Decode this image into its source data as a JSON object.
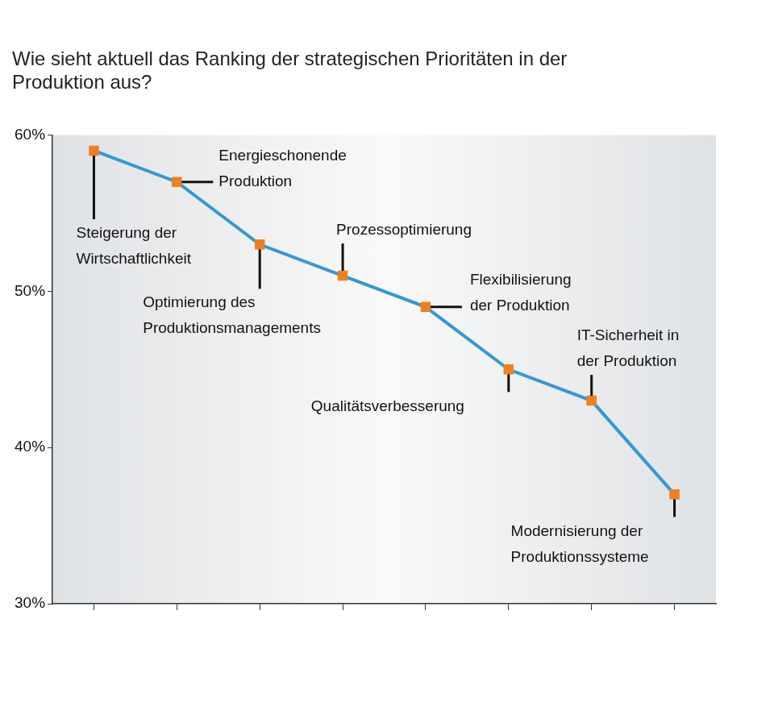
{
  "chart_data": {
    "type": "line",
    "title": "Wie sieht aktuell das Ranking der strategischen Prioritäten in der Produktion aus?",
    "categories": [
      "Steigerung der Wirtschaftlichkeit",
      "Energieschonende Produktion",
      "Optimierung des Produktionsmanagements",
      "Prozessoptimierung",
      "Flexibilisierung der Produktion",
      "Qualitätsverbesserung",
      "IT-Sicherheit in der Produktion",
      "Modernisierung der Produktionssysteme"
    ],
    "values": [
      59,
      57,
      53,
      51,
      49,
      45,
      43,
      37
    ],
    "color": "#3399d4",
    "marker": "square",
    "ylim": [
      30,
      60
    ],
    "yticks": [
      {
        "value": 30,
        "label": "30%"
      },
      {
        "value": 40,
        "label": "40%"
      },
      {
        "value": 50,
        "label": "50%"
      },
      {
        "value": 60,
        "label": "60%"
      }
    ],
    "grid": false,
    "tick_labels": "y"
  }
}
